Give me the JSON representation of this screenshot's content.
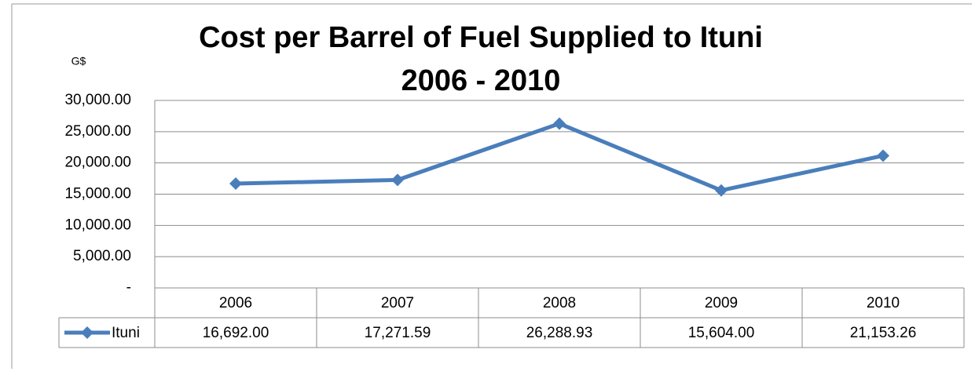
{
  "chart_data": {
    "type": "line",
    "title": "Cost per Barrel of Fuel Supplied to Ituni",
    "subtitle": "2006 - 2010",
    "y_label": "G$",
    "categories": [
      "2006",
      "2007",
      "2008",
      "2009",
      "2010"
    ],
    "series": [
      {
        "name": "Ituni",
        "color": "#4a7ebb",
        "values": [
          16692,
          17271.59,
          26288.93,
          15604,
          21153.26
        ],
        "value_labels": [
          "16,692.00",
          "17,271.59",
          "26,288.93",
          "15,604.00",
          "21,153.26"
        ]
      }
    ],
    "ylim": [
      0,
      30000
    ],
    "yticks": [
      {
        "value": 0,
        "label": "-"
      },
      {
        "value": 5000,
        "label": "5,000.00"
      },
      {
        "value": 10000,
        "label": "10,000.00"
      },
      {
        "value": 15000,
        "label": "15,000.00"
      },
      {
        "value": 20000,
        "label": "20,000.00"
      },
      {
        "value": 25000,
        "label": "25,000.00"
      },
      {
        "value": 30000,
        "label": "30,000.00"
      }
    ],
    "grid": true
  }
}
